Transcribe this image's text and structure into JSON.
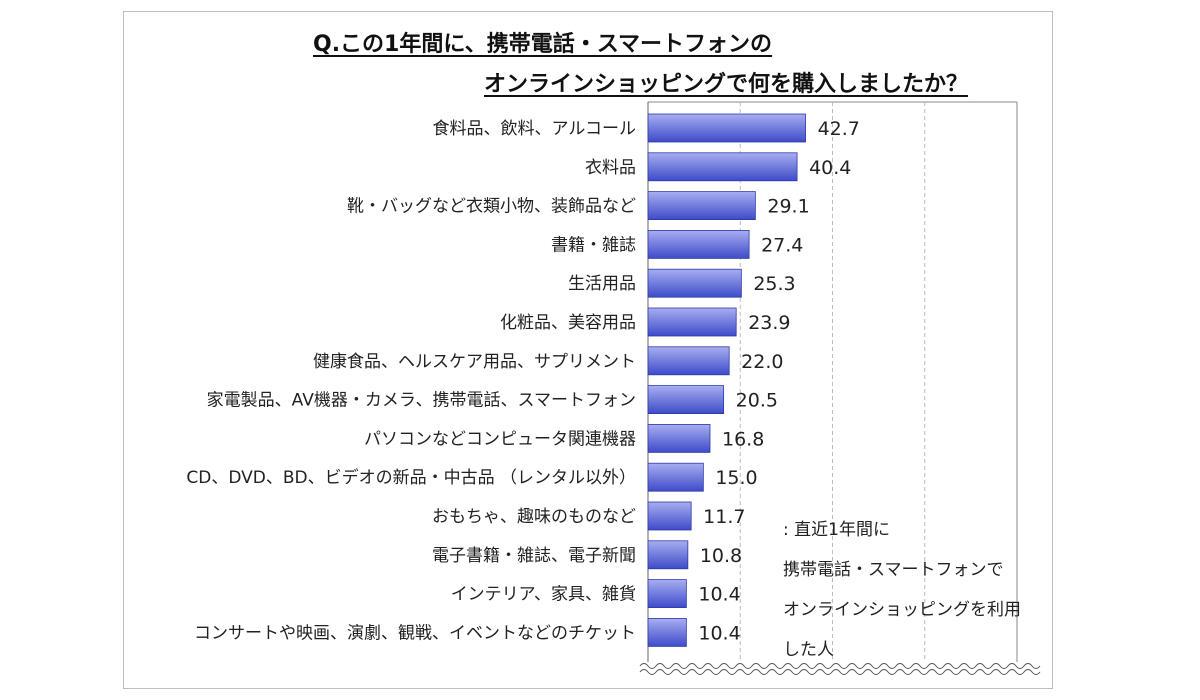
{
  "title_lines": [
    "Q.この1年間に、携帯電話・スマートフォンの",
    "オンラインショッピングで何を購入しましたか？"
  ],
  "note": ": 直近1年間に\n携帯電話・スマートフォンで\nオンラインショッピングを利用\nした人",
  "colors": {
    "bar_top": "#a7aef0",
    "bar_bottom": "#3e4bc9",
    "bar_edge": "#2e3aa8",
    "grid": "#bbbbbb"
  },
  "chart_data": {
    "type": "bar",
    "orientation": "horizontal",
    "title": "Q.この1年間に、携帯電話・スマートフォンのオンラインショッピングで何を購入しましたか？",
    "categories": [
      "食料品、飲料、アルコール",
      "衣料品",
      "靴・バッグなど衣類小物、装飾品など",
      "書籍・雑誌",
      "生活用品",
      "化粧品、美容用品",
      "健康食品、ヘルスケア用品、サプリメント",
      "家電製品、AV機器・カメラ、携帯電話、スマートフォン",
      "パソコンなどコンピュータ関連機器",
      "CD、DVD、BD、ビデオの新品・中古品 （レンタル以外）",
      "おもちゃ、趣味のものなど",
      "電子書籍・雑誌、電子新聞",
      "インテリア、家具、雑貨",
      "コンサートや映画、演劇、観戦、イベントなどのチケット"
    ],
    "values": [
      42.7,
      40.4,
      29.1,
      27.4,
      25.3,
      23.9,
      22.0,
      20.5,
      16.8,
      15.0,
      11.7,
      10.8,
      10.4,
      10.4
    ],
    "value_labels": [
      "42.7",
      "40.4",
      "29.1",
      "27.4",
      "25.3",
      "23.9",
      "22.0",
      "20.5",
      "16.8",
      "15.0",
      "11.7",
      "10.8",
      "10.4",
      "10.4"
    ],
    "xlim": [
      0,
      100
    ],
    "grid": true,
    "grid_style": "dashed vertical",
    "axis_break": "wavy line at bottom",
    "legend": "none"
  }
}
